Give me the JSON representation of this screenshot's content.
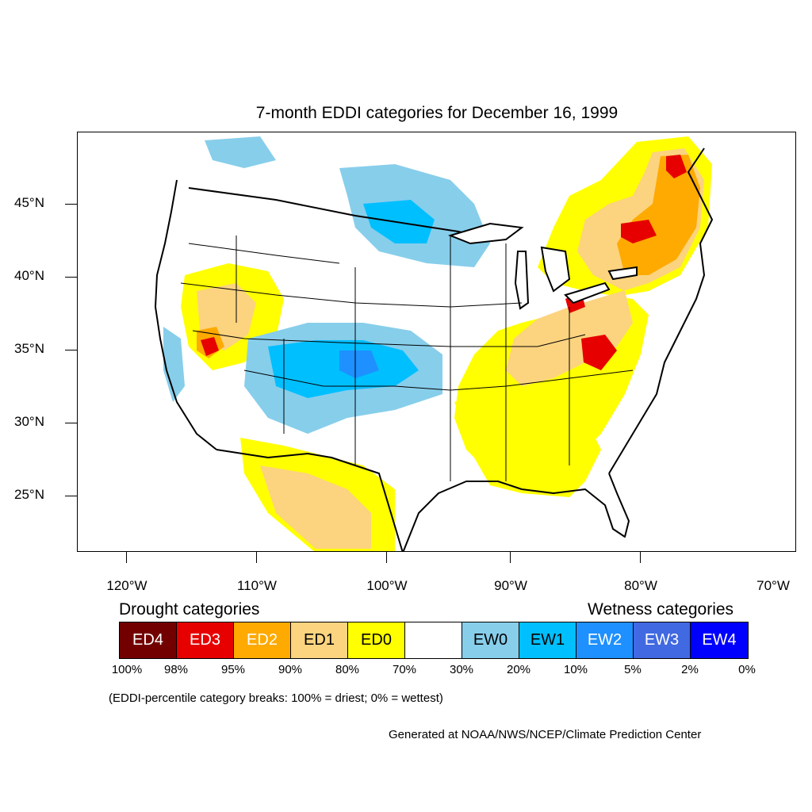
{
  "title": "7-month EDDI categories for December 16, 1999",
  "map": {
    "lat_labels": [
      "45°N",
      "40°N",
      "35°N",
      "30°N",
      "25°N"
    ],
    "lon_labels": [
      "120°W",
      "110°W",
      "100°W",
      "90°W",
      "80°W",
      "70°W"
    ]
  },
  "legend": {
    "drought_heading": "Drought categories",
    "wetness_heading": "Wetness categories",
    "categories": [
      {
        "label": "ED4",
        "color": "#730000",
        "text_color": "#ffffff"
      },
      {
        "label": "ED3",
        "color": "#e60000",
        "text_color": "#ffffff"
      },
      {
        "label": "ED2",
        "color": "#ffaa00",
        "text_color": "#ffffff"
      },
      {
        "label": "ED1",
        "color": "#fcd37f",
        "text_color": "#000000"
      },
      {
        "label": "ED0",
        "color": "#ffff00",
        "text_color": "#000000"
      },
      {
        "label": "",
        "color": "#ffffff",
        "text_color": "#000000"
      },
      {
        "label": "EW0",
        "color": "#87ceeb",
        "text_color": "#000000"
      },
      {
        "label": "EW1",
        "color": "#00bfff",
        "text_color": "#000000"
      },
      {
        "label": "EW2",
        "color": "#1e90ff",
        "text_color": "#ffffff"
      },
      {
        "label": "EW3",
        "color": "#4169e1",
        "text_color": "#ffffff"
      },
      {
        "label": "EW4",
        "color": "#0000ff",
        "text_color": "#ffffff"
      }
    ],
    "percent_breaks": [
      "100%",
      "98%",
      "95%",
      "90%",
      "80%",
      "70%",
      "30%",
      "20%",
      "10%",
      "5%",
      "2%",
      "0%"
    ]
  },
  "note": "(EDDI-percentile category breaks: 100% = driest; 0% = wettest)",
  "credit": "Generated at NOAA/NWS/NCEP/Climate Prediction Center"
}
